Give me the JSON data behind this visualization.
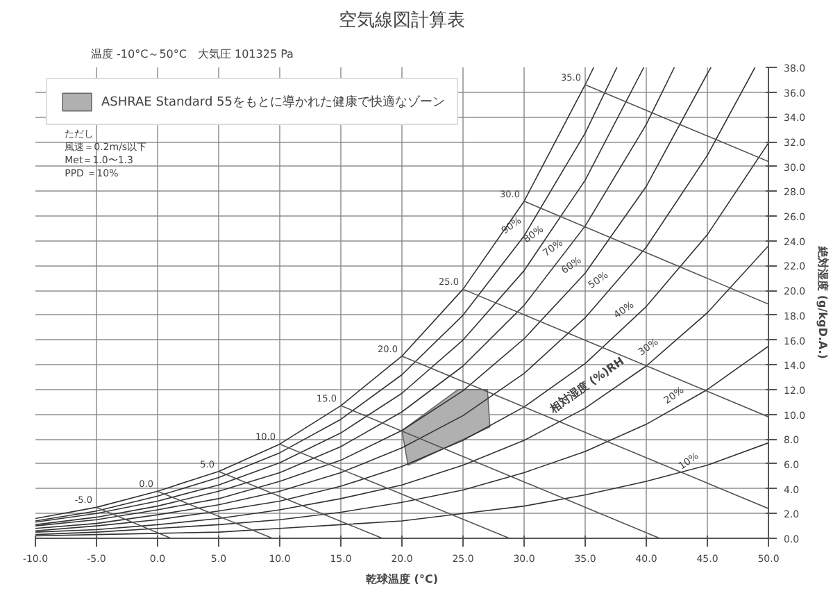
{
  "chart_data": {
    "type": "line",
    "title": "空気線図計算表",
    "subtitle": "温度 -10°C～50°C　大気圧 101325 Pa",
    "xlabel": "乾球温度 (°C)",
    "ylabel": "絶対湿度 (g/kgD.A.)",
    "xlim": [
      -10,
      50
    ],
    "xticks": [
      {
        "value": -10,
        "label": "-10.0"
      },
      {
        "value": -5,
        "label": "-5.0"
      },
      {
        "value": 0,
        "label": "0.0"
      },
      {
        "value": 5,
        "label": "5.0"
      },
      {
        "value": 10,
        "label": "10.0"
      },
      {
        "value": 15,
        "label": "15.0"
      },
      {
        "value": 20,
        "label": "20.0"
      },
      {
        "value": 25,
        "label": "25.0"
      },
      {
        "value": 30,
        "label": "30.0"
      },
      {
        "value": 35,
        "label": "35.0"
      },
      {
        "value": 40,
        "label": "40.0"
      },
      {
        "value": 45,
        "label": "45.0"
      },
      {
        "value": 50,
        "label": "50.0"
      }
    ],
    "ylim": [
      0,
      38
    ],
    "yticks": [
      {
        "value": 0,
        "label": "0.0"
      },
      {
        "value": 2,
        "label": "2.0"
      },
      {
        "value": 4,
        "label": "4.0"
      },
      {
        "value": 6,
        "label": "6.0"
      },
      {
        "value": 8,
        "label": "8.0"
      },
      {
        "value": 10,
        "label": "10.0"
      },
      {
        "value": 12,
        "label": "12.0"
      },
      {
        "value": 14,
        "label": "14.0"
      },
      {
        "value": 16,
        "label": "16.0"
      },
      {
        "value": 18,
        "label": "18.0"
      },
      {
        "value": 20,
        "label": "20.0"
      },
      {
        "value": 22,
        "label": "22.0"
      },
      {
        "value": 24,
        "label": "24.0"
      },
      {
        "value": 26,
        "label": "26.0"
      },
      {
        "value": 28,
        "label": "28.0"
      },
      {
        "value": 30,
        "label": "30.0"
      },
      {
        "value": 32,
        "label": "32.0"
      },
      {
        "value": 34,
        "label": "34.0"
      },
      {
        "value": 36,
        "label": "36.0"
      },
      {
        "value": 38,
        "label": "38.0"
      }
    ],
    "grid": true,
    "legend": "top left",
    "series": [
      {
        "type": "area",
        "name": "ASHRAE Standard 55をもとに導かれた健康で快適なゾーン",
        "color": "#b0b0b0",
        "x": [
          20.0,
          24.6,
          27.0,
          27.2,
          20.5
        ],
        "values": [
          8.7,
          12,
          12,
          9.0,
          5.9
        ]
      },
      {
        "color": "#333333",
        "x": [
          -10,
          -5,
          0,
          5,
          10,
          15,
          20,
          25,
          30,
          35,
          35.7
        ],
        "values": [
          1.6,
          2.5,
          3.8,
          5.4,
          7.6,
          10.7,
          14.7,
          20.1,
          27.2,
          36.6,
          38
        ]
      },
      {
        "color": "#333333",
        "x": [
          -10,
          -5,
          0,
          5,
          10,
          15,
          20,
          25,
          30,
          35,
          37.6
        ],
        "values": [
          1.4,
          2.2,
          3.4,
          4.9,
          6.9,
          9.6,
          13.2,
          18.0,
          24.4,
          32.7,
          38
        ]
      },
      {
        "color": "#333333",
        "x": [
          -10,
          -5,
          0,
          5,
          10,
          15,
          20,
          25,
          30,
          35,
          39.8
        ],
        "values": [
          1.3,
          2.0,
          3.0,
          4.3,
          6.1,
          8.5,
          11.7,
          16.0,
          21.6,
          28.9,
          38
        ]
      },
      {
        "color": "#333333",
        "x": [
          -10,
          -5,
          0,
          5,
          10,
          15,
          20,
          25,
          30,
          35,
          40,
          42.3
        ],
        "values": [
          1.1,
          1.7,
          2.6,
          3.8,
          5.3,
          7.4,
          10.2,
          13.9,
          18.8,
          25.2,
          33.4,
          38
        ]
      },
      {
        "color": "#333333",
        "x": [
          -10,
          -5,
          0,
          5,
          10,
          15,
          20,
          25,
          30,
          35,
          40,
          45,
          45.3
        ],
        "values": [
          1.0,
          1.5,
          2.3,
          3.2,
          4.6,
          6.3,
          8.7,
          11.9,
          16.1,
          21.4,
          28.4,
          37.5,
          38
        ]
      },
      {
        "color": "#333333",
        "x": [
          -10,
          -5,
          0,
          5,
          10,
          15,
          20,
          25,
          30,
          35,
          40,
          45,
          48.9
        ],
        "values": [
          0.8,
          1.2,
          1.9,
          2.7,
          3.8,
          5.3,
          7.3,
          9.9,
          13.3,
          17.8,
          23.5,
          30.9,
          38
        ]
      },
      {
        "color": "#333333",
        "x": [
          -10,
          -5,
          0,
          5,
          10,
          15,
          20,
          25,
          30,
          35,
          40,
          45,
          50
        ],
        "values": [
          0.6,
          1.0,
          1.5,
          2.2,
          3.0,
          4.2,
          5.8,
          7.9,
          10.6,
          14.1,
          18.7,
          24.5,
          31.9
        ]
      },
      {
        "color": "#333333",
        "x": [
          -10,
          -5,
          0,
          5,
          10,
          15,
          20,
          25,
          30,
          35,
          40,
          45,
          50
        ],
        "values": [
          0.5,
          0.7,
          1.1,
          1.6,
          2.3,
          3.2,
          4.3,
          5.9,
          7.9,
          10.5,
          13.9,
          18.2,
          23.6
        ]
      },
      {
        "color": "#333333",
        "x": [
          -10,
          -5,
          0,
          5,
          10,
          15,
          20,
          25,
          30,
          35,
          40,
          45,
          50
        ],
        "values": [
          0.3,
          0.5,
          0.8,
          1.1,
          1.5,
          2.1,
          2.9,
          3.9,
          5.3,
          7.0,
          9.2,
          12.0,
          15.5
        ]
      },
      {
        "color": "#333333",
        "x": [
          -10,
          -5,
          0,
          5,
          10,
          15,
          20,
          25,
          30,
          35,
          40,
          45,
          50
        ],
        "values": [
          0.2,
          0.3,
          0.4,
          0.5,
          0.8,
          1.1,
          1.4,
          2.0,
          2.6,
          3.5,
          4.6,
          5.9,
          7.7
        ]
      },
      {
        "type": "line",
        "color": "#555555",
        "x": [
          -5,
          1.1
        ],
        "values": [
          2.5,
          0
        ]
      },
      {
        "type": "line",
        "color": "#555555",
        "x": [
          0,
          9.4
        ],
        "values": [
          3.8,
          0
        ]
      },
      {
        "type": "line",
        "color": "#555555",
        "x": [
          5,
          18.4
        ],
        "values": [
          5.4,
          0
        ]
      },
      {
        "type": "line",
        "color": "#555555",
        "x": [
          10,
          28.8
        ],
        "values": [
          7.6,
          0
        ]
      },
      {
        "type": "line",
        "color": "#555555",
        "x": [
          15,
          41.1
        ],
        "values": [
          10.7,
          0
        ]
      },
      {
        "type": "line",
        "color": "#555555",
        "x": [
          20,
          50
        ],
        "values": [
          14.7,
          2.4
        ]
      },
      {
        "type": "line",
        "color": "#555555",
        "x": [
          25,
          50
        ],
        "values": [
          20.1,
          9.8
        ]
      },
      {
        "type": "line",
        "color": "#555555",
        "x": [
          30,
          50
        ],
        "values": [
          27.2,
          18.9
        ]
      },
      {
        "type": "line",
        "color": "#555555",
        "x": [
          35,
          50
        ],
        "values": [
          36.6,
          30.4
        ]
      }
    ],
    "annotations": [
      "ただし",
      "風速＝0.2m/s以下",
      "Met＝1.0〜1.3",
      "PPD ＝10%",
      {
        "text": "-5.0",
        "x": -5,
        "y": 2.5
      },
      {
        "text": "0.0",
        "x": 0,
        "y": 3.8
      },
      {
        "text": "5.0",
        "x": 5,
        "y": 5.4
      },
      {
        "text": "10.0",
        "x": 10,
        "y": 7.6
      },
      {
        "text": "15.0",
        "x": 15,
        "y": 10.7
      },
      {
        "text": "20.0",
        "x": 20,
        "y": 14.7
      },
      {
        "text": "25.0",
        "x": 25,
        "y": 20.1
      },
      {
        "text": "30.0",
        "x": 30,
        "y": 27.2
      },
      {
        "text": "35.0",
        "x": 35,
        "y": 36.6
      },
      {
        "text": "90%",
        "x": 29.8,
        "y": 24.4
      },
      {
        "text": "80%",
        "x": 31.6,
        "y": 23.7
      },
      {
        "text": "70%",
        "x": 33.2,
        "y": 22.6
      },
      {
        "text": "60%",
        "x": 34.7,
        "y": 21.2
      },
      {
        "text": "50%",
        "x": 36.9,
        "y": 20.0
      },
      {
        "text": "40%",
        "x": 39.0,
        "y": 17.6
      },
      {
        "text": "30%",
        "x": 41.0,
        "y": 14.6
      },
      {
        "text": "20%",
        "x": 43.1,
        "y": 10.7
      },
      {
        "text": "10%",
        "x": 44.3,
        "y": 5.4
      },
      {
        "text": "相対湿度 (%)RH",
        "x": 36.0,
        "y": 11.5
      }
    ]
  }
}
